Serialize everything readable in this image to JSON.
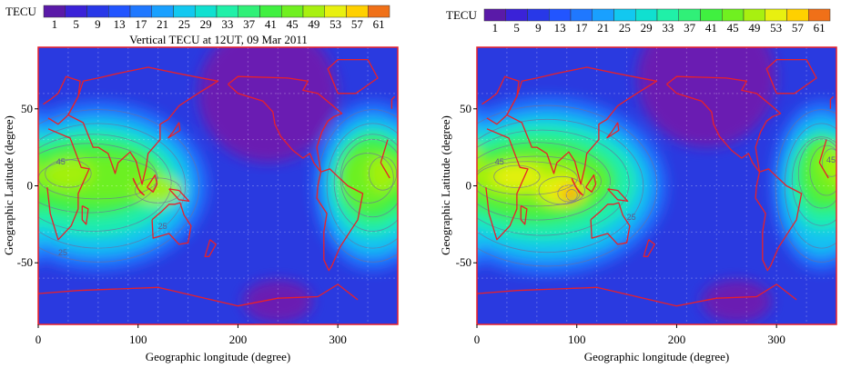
{
  "figure": {
    "panels": [
      {
        "title": "Vertical TECU at 12UT, 09 Mar 2011",
        "colorbar_label": "TECU",
        "xlabel": "Geographic longitude (degree)",
        "ylabel": "Geographic Latitude (degree)"
      },
      {
        "title": "",
        "colorbar_label": "TECU",
        "xlabel": "Geographic longitude (degree)",
        "ylabel": "Geographic Latitude (degree)"
      }
    ],
    "colors": {
      "coastline": "#e8202a",
      "contour": "#6e6e9c",
      "background_level": "#2a3ae0",
      "low_level": "#6a1fb2"
    }
  },
  "chart_data": [
    {
      "type": "heatmap",
      "title": "Vertical TECU at 12UT, 09 Mar 2011",
      "xlabel": "Geographic longitude (degree)",
      "ylabel": "Geographic Latitude (degree)",
      "xlim": [
        0,
        360
      ],
      "ylim": [
        -90,
        90
      ],
      "x_ticks": [
        0,
        100,
        200,
        300
      ],
      "y_ticks": [
        50,
        0,
        -50
      ],
      "colorbar": {
        "label": "TECU",
        "ticks": [
          1,
          5,
          9,
          13,
          17,
          21,
          25,
          29,
          33,
          37,
          41,
          45,
          49,
          53,
          57,
          61
        ],
        "colors": [
          "#5a1aa8",
          "#3a22d8",
          "#2838e8",
          "#2255ff",
          "#1f78ff",
          "#19a0ff",
          "#12c8f0",
          "#10e0d0",
          "#20f0a8",
          "#30f078",
          "#40f040",
          "#70f020",
          "#a8f010",
          "#e8f010",
          "#ffd000",
          "#f07018"
        ]
      },
      "contour_labels": [
        "45",
        "25",
        "25"
      ],
      "peaks": [
        {
          "lon": 15,
          "lat": 8,
          "tec": 45
        },
        {
          "lon": 120,
          "lat": -5,
          "tec": 41
        },
        {
          "lon": 335,
          "lat": 5,
          "tec": 49
        }
      ],
      "low_regions": [
        {
          "lon": 230,
          "lat": 60,
          "tec": 1
        },
        {
          "lon": 240,
          "lat": -75,
          "tec": 1
        }
      ]
    },
    {
      "type": "heatmap",
      "title": "",
      "xlabel": "Geographic longitude (degree)",
      "ylabel": "Geographic Latitude (degree)",
      "xlim": [
        0,
        360
      ],
      "ylim": [
        -90,
        90
      ],
      "x_ticks": [
        0,
        100,
        200,
        300
      ],
      "y_ticks": [
        50,
        0,
        -50
      ],
      "colorbar": {
        "label": "TECU",
        "ticks": [
          1,
          5,
          9,
          13,
          17,
          21,
          25,
          29,
          33,
          37,
          41,
          45,
          49,
          53,
          57,
          61
        ],
        "colors": [
          "#5a1aa8",
          "#3a22d8",
          "#2838e8",
          "#2255ff",
          "#1f78ff",
          "#19a0ff",
          "#12c8f0",
          "#10e0d0",
          "#20f0a8",
          "#30f078",
          "#40f040",
          "#70f020",
          "#a8f010",
          "#e8f010",
          "#ffd000",
          "#f07018"
        ]
      },
      "contour_labels": [
        "45",
        "25",
        "45"
      ],
      "peaks": [
        {
          "lon": 90,
          "lat": -5,
          "tec": 61
        },
        {
          "lon": 40,
          "lat": 5,
          "tec": 53
        },
        {
          "lon": 350,
          "lat": 15,
          "tec": 45
        }
      ],
      "low_regions": [
        {
          "lon": 230,
          "lat": 70,
          "tec": 1
        },
        {
          "lon": 260,
          "lat": -75,
          "tec": 1
        }
      ]
    }
  ]
}
